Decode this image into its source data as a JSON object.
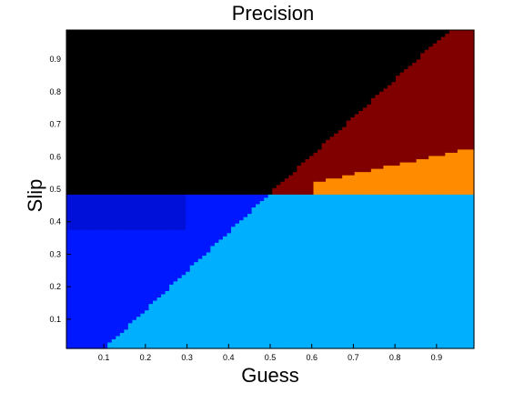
{
  "chart_data": {
    "type": "heatmap",
    "title": "Precision",
    "xlabel": "Guess",
    "ylabel": "Slip",
    "xlim": [
      0.01,
      0.99
    ],
    "ylim": [
      0.01,
      0.99
    ],
    "x_ticks": [
      "0.1",
      "0.2",
      "0.3",
      "0.4",
      "0.5",
      "0.6",
      "0.7",
      "0.8",
      "0.9"
    ],
    "y_ticks": [
      "0.1",
      "0.2",
      "0.3",
      "0.4",
      "0.5",
      "0.6",
      "0.7",
      "0.8",
      "0.9"
    ],
    "grid": false,
    "colormap": "jet",
    "colors": {
      "black": "#000000",
      "dark_red": "#800000",
      "orange": "#ff8c00",
      "yellow": "#ffe600",
      "light_green": "#b4ff50",
      "green": "#78ff78",
      "light_blue": "#00b0ff",
      "blue": "#0018ff",
      "dark_blue": "#0010d8"
    },
    "regions": [
      {
        "color": "black",
        "description": "slip above 0.49, guess below the diagonal boundary from (0.5, 0.5) to (0.93, 0.99)"
      },
      {
        "color": "dark_red",
        "description": "slip above 0.5, guess right of the diagonal boundary"
      },
      {
        "color": "orange",
        "description": "thin band near slip 0.52-0.65 for guess above 0.6"
      },
      {
        "color": "light_blue",
        "description": "slip below 0.5, guess right of the staircase boundary from (0.1, 0.01) to (0.5, 0.5)"
      },
      {
        "color": "blue",
        "description": "slip below 0.49, guess left of the staircase boundary"
      },
      {
        "color": "dark_blue",
        "description": "slip 0.38-0.49 near guess below 0.3"
      }
    ]
  }
}
